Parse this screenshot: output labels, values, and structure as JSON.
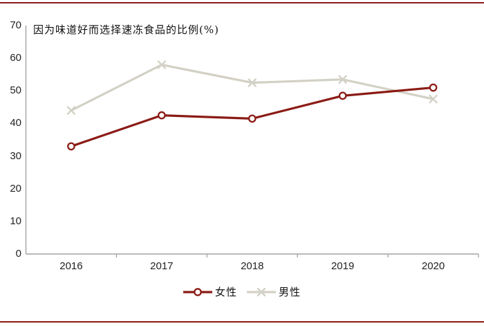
{
  "page": {
    "accent_color": "#8b1b15",
    "background_color": "#ffffff",
    "axis_color": "#a3a3a3",
    "text_color": "#1a1a1a"
  },
  "chart_data": {
    "type": "line",
    "title": "因为味道好而选择速冻食品的比例(%)",
    "categories": [
      "2016",
      "2017",
      "2018",
      "2019",
      "2020"
    ],
    "series": [
      {
        "name": "女性",
        "color": "#8b1b15",
        "marker": "circle",
        "values": [
          33,
          42.5,
          41.5,
          48.5,
          51
        ]
      },
      {
        "name": "男性",
        "color": "#d3d1c5",
        "marker": "x",
        "values": [
          44,
          58,
          52.5,
          53.5,
          47.5
        ]
      }
    ],
    "ylim": [
      0,
      70
    ],
    "yticks": [
      0,
      10,
      20,
      30,
      40,
      50,
      60,
      70
    ],
    "xlabel": "",
    "ylabel": "",
    "grid": false,
    "legend_position": "bottom"
  }
}
